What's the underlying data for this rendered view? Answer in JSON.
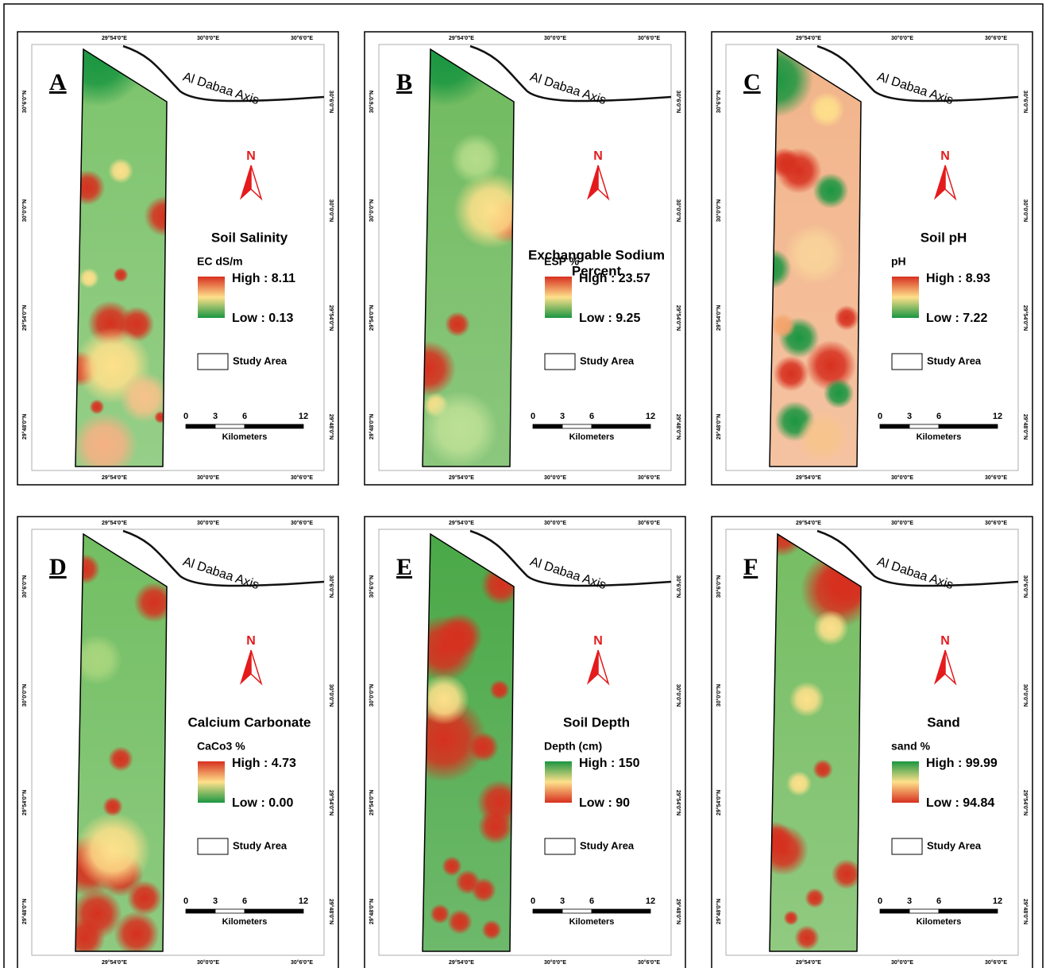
{
  "common": {
    "road": "Al Dabaa Axis",
    "north": "N",
    "study_area": "Study Area",
    "scale": [
      0,
      3,
      6,
      12
    ],
    "scale_unit": "Kilometers",
    "lon_labels": [
      "29°54'0\"E",
      "30°0'0\"E",
      "30°6'0\"E"
    ],
    "lat_labels": [
      "30°6'0\"N",
      "30°0'0\"N",
      "29°54'0\"N",
      "29°48'0\"N"
    ]
  },
  "panels": [
    {
      "letter": "A",
      "title": [
        "Soil Salinity"
      ],
      "unit": "EC  dS/m",
      "high": "High : 8.11",
      "low": "Low : 0.13",
      "legend_colors": [
        "#d7301f",
        "#fee08b",
        "#1a9641"
      ],
      "base_color": "#7cc36b"
    },
    {
      "letter": "B",
      "title": [
        "Exchangable Sodium",
        "Percent"
      ],
      "unit": "ESP %",
      "high": "High : 23.57",
      "low": "Low : 9.25",
      "legend_colors": [
        "#d7301f",
        "#fee08b",
        "#1a9641"
      ],
      "base_color": "#6fba5e"
    },
    {
      "letter": "C",
      "title": [
        "Soil pH"
      ],
      "unit": "pH",
      "high": "High : 8.93",
      "low": "Low : 7.22",
      "legend_colors": [
        "#d7301f",
        "#fee08b",
        "#1a9641"
      ],
      "base_color": "#f2b48a"
    },
    {
      "letter": "D",
      "title": [
        "Calcium Carbonate"
      ],
      "unit": "CaCo3 %",
      "high": "High : 4.73",
      "low": "Low : 0.00",
      "legend_colors": [
        "#d7301f",
        "#fee08b",
        "#1a9641"
      ],
      "base_color": "#72be62"
    },
    {
      "letter": "E",
      "title": [
        "Soil Depth"
      ],
      "unit": "Depth (cm)",
      "high": "High : 150",
      "low": "Low : 90",
      "legend_colors": [
        "#1a9641",
        "#fee08b",
        "#d7301f"
      ],
      "base_color": "#4aa847"
    },
    {
      "letter": "F",
      "title": [
        "Sand"
      ],
      "unit": "sand %",
      "high": "High : 99.99",
      "low": "Low : 94.84",
      "legend_colors": [
        "#1a9641",
        "#fee08b",
        "#d7301f"
      ],
      "base_color": "#75bd62"
    }
  ]
}
